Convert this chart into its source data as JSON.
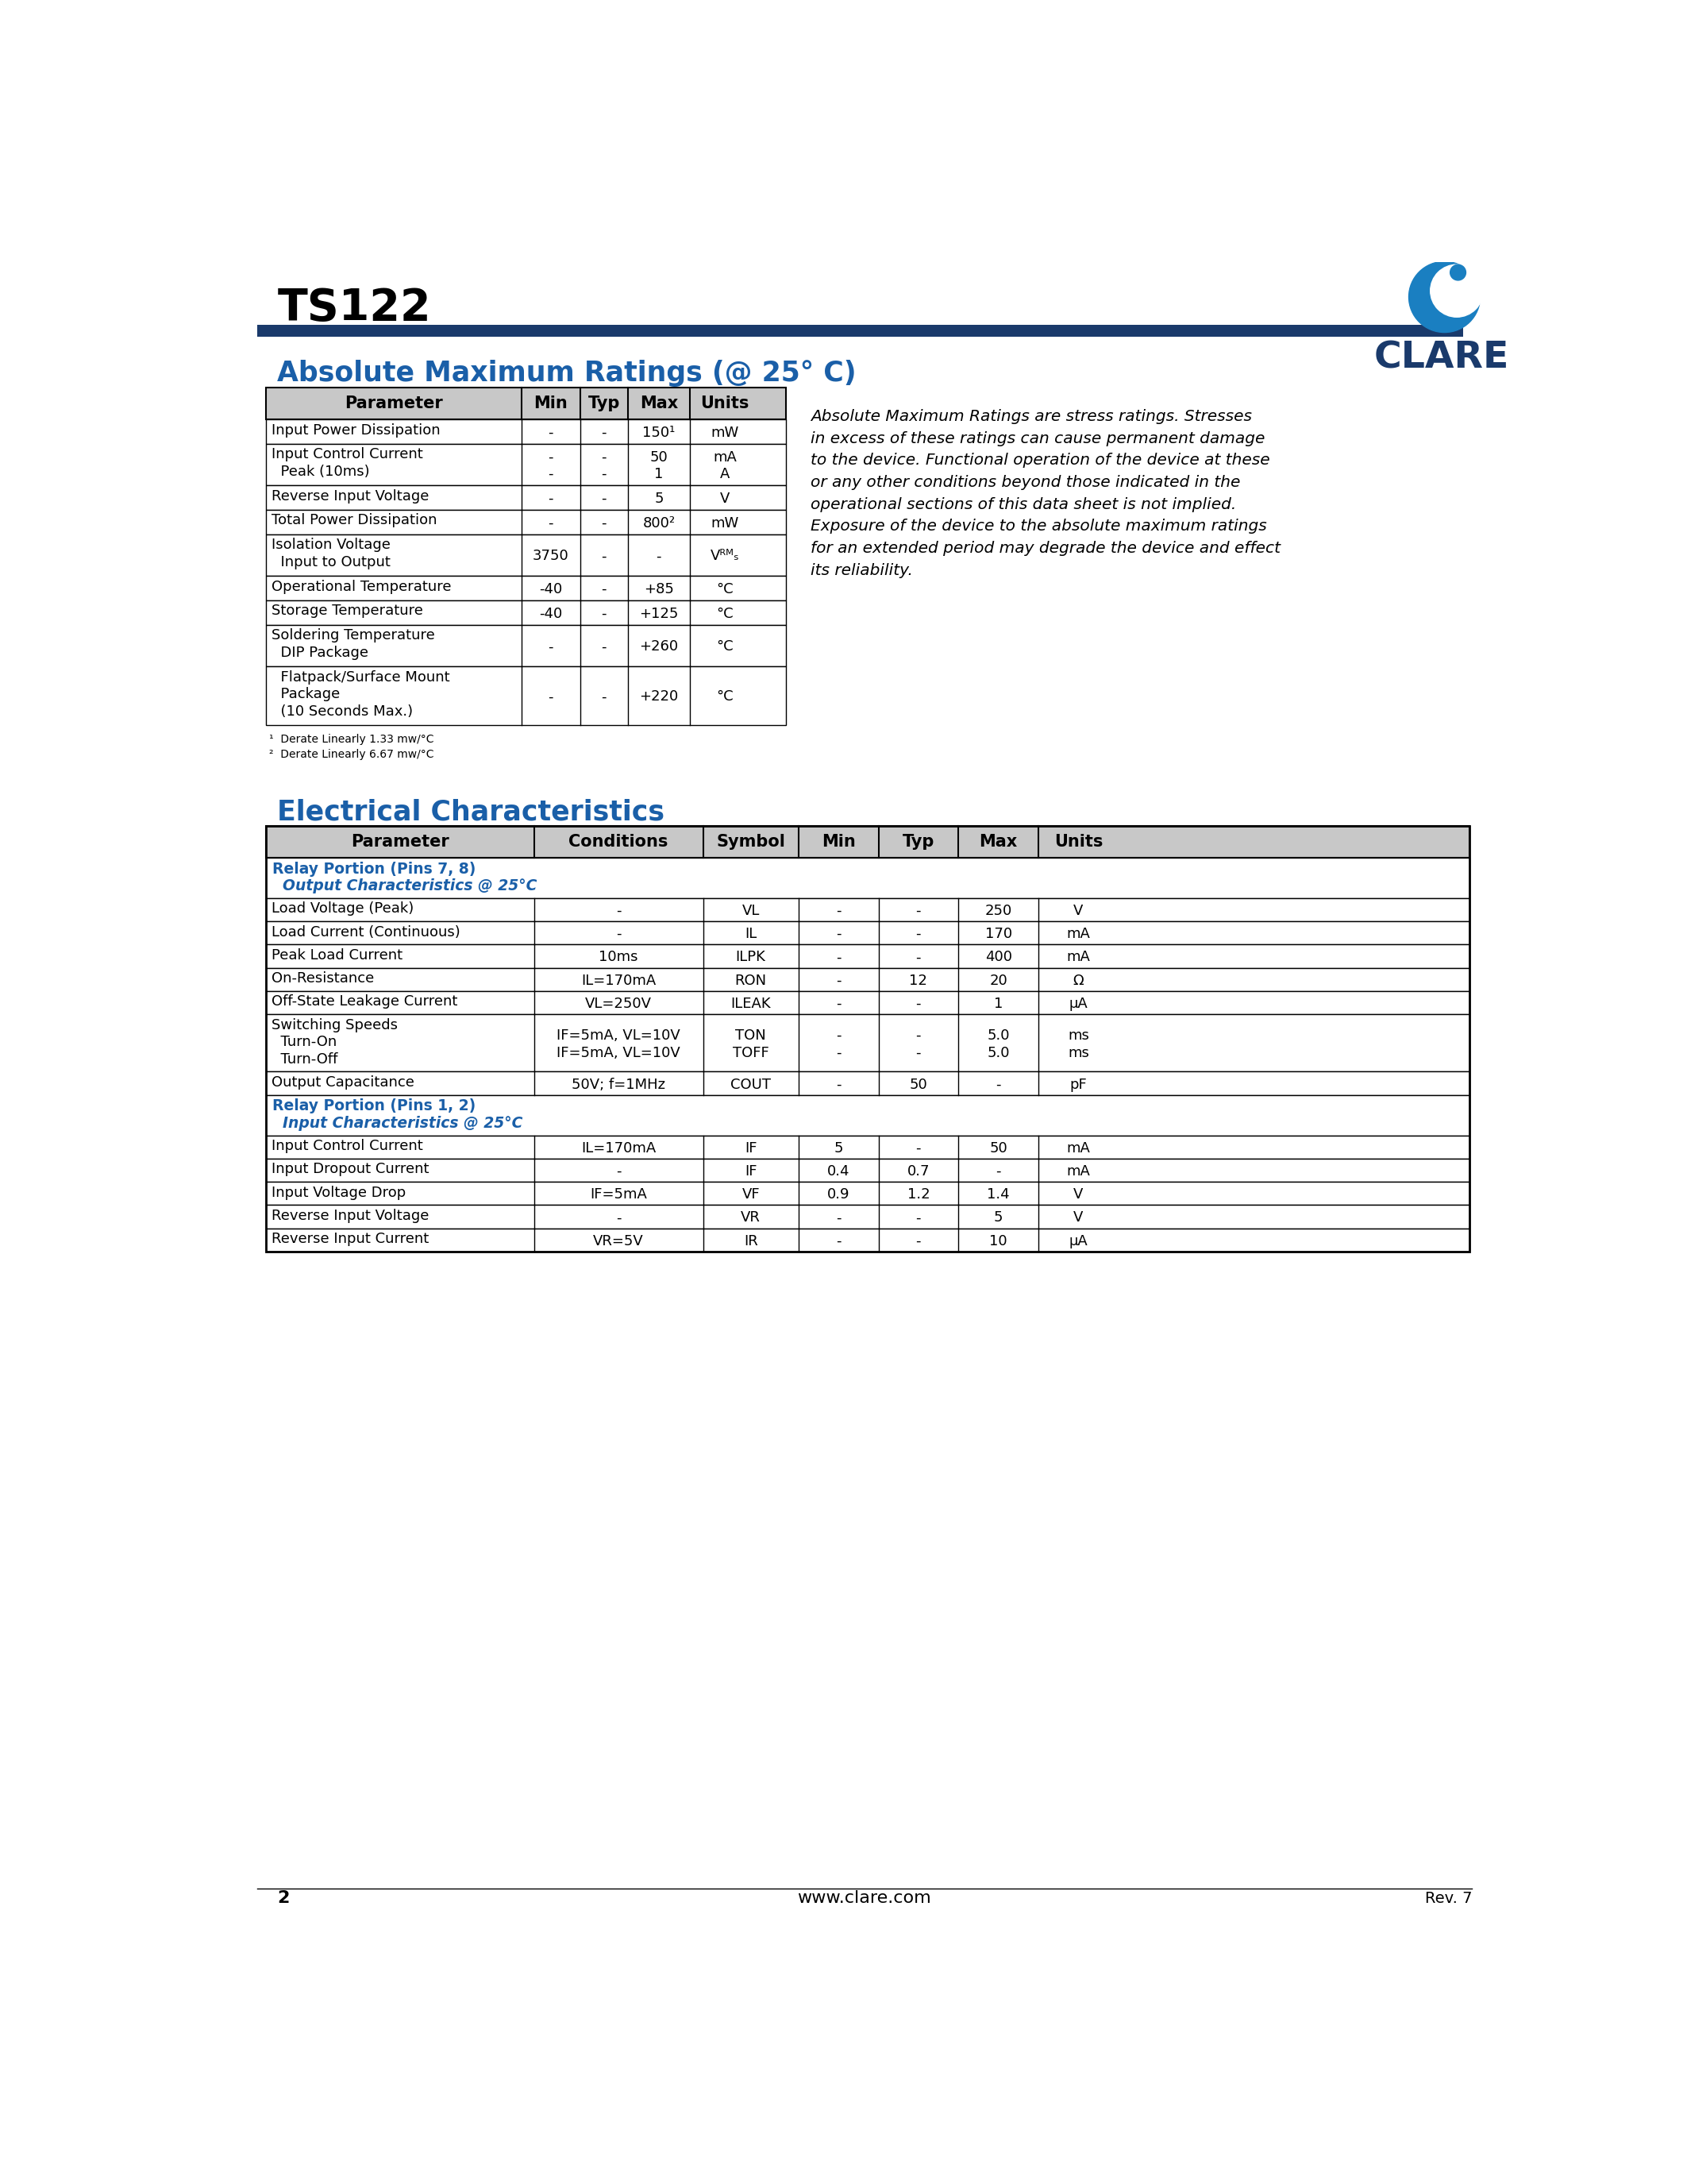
{
  "title": "TS122",
  "header_bar_color": "#1a3a6b",
  "clare_text_color": "#1a3a6b",
  "blue_heading_color": "#1a5fa8",
  "section1_title": "Absolute Maximum Ratings (@ 25° C)",
  "section2_title": "Electrical Characteristics",
  "footnote1": "¹  Derate Linearly 1.33 mw/°C",
  "footnote2": "²  Derate Linearly 6.67 mw/°C",
  "abs_max_note_lines": [
    "Absolute Maximum Ratings are stress ratings. Stresses",
    "in excess of these ratings can cause permanent damage",
    "to the device. Functional operation of the device at these",
    "or any other conditions beyond those indicated in the",
    "operational sections of this data sheet is not implied.",
    "Exposure of the device to the absolute maximum ratings",
    "for an extended period may degrade the device and effect",
    "its reliability."
  ],
  "footer_page": "2",
  "footer_url": "www.clare.com",
  "footer_rev": "Rev. 7",
  "bg_color": "#ffffff",
  "table_border_color": "#000000",
  "table_header_bg": "#c8c8c8",
  "subheader_color": "#1a5fa8"
}
